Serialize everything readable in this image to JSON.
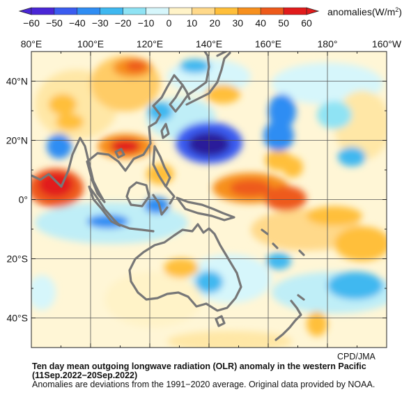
{
  "colorbar": {
    "ticks": [
      "−60",
      "−50",
      "−40",
      "−30",
      "−20",
      "−10",
      "0",
      "10",
      "20",
      "30",
      "40",
      "50",
      "60"
    ],
    "units_label": "anomalies(W/m",
    "units_sup": "2",
    "units_close": ")",
    "colors": [
      "#4a26d6",
      "#3b5cf0",
      "#2f8df3",
      "#3fb8f0",
      "#8fe3f4",
      "#d6f6fb",
      "#ffffff",
      "#fff3c8",
      "#ffd98a",
      "#ffbf3a",
      "#f7901e",
      "#ee5a1a",
      "#e11b1b"
    ]
  },
  "map": {
    "lon_labels": [
      "80°E",
      "100°E",
      "120°E",
      "140°E",
      "160°E",
      "180°",
      "160°W"
    ],
    "lat_labels": [
      "40°N",
      "20°N",
      "0°",
      "20°S",
      "40°S"
    ],
    "lon_range": [
      80,
      200
    ],
    "lat_range": [
      -50,
      50
    ],
    "grid": true
  },
  "credit": "CPD/JMA",
  "caption": {
    "title_line1": "Ten day mean outgoing longwave radiation (OLR) anomaly in the western Pacific",
    "title_line2": "(11Sep.2022−20Sep.2022)",
    "note": "Anomalies are deviations from the 1991−2020 average. Original data provided by NOAA."
  }
}
